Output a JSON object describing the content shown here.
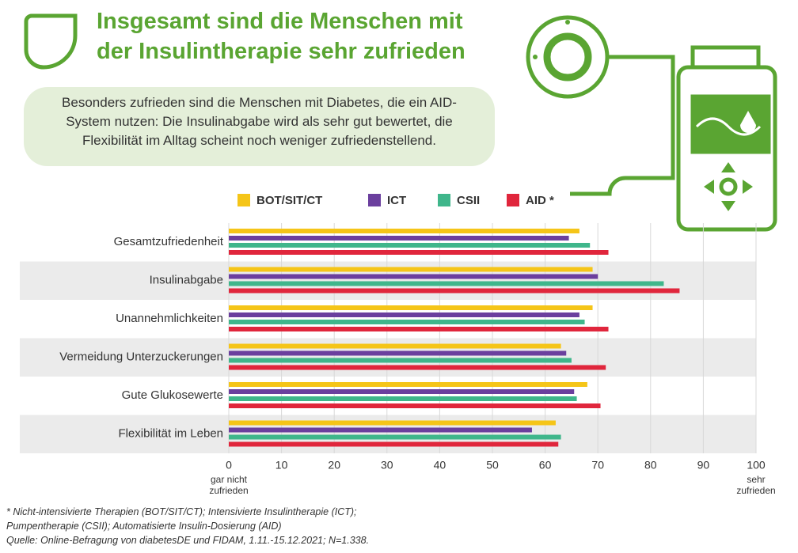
{
  "title": "Insgesamt sind die Menschen mit der Insulintherapie sehr zufrieden",
  "summary": "Besonders zufrieden sind die Menschen mit Diabetes, die ein AID-System nutzen: Die Insulinabgabe wird als sehr gut bewertet, die Flexibilität im Alltag scheint noch weniger zufriedenstellend.",
  "chart_data": {
    "type": "bar",
    "orientation": "horizontal",
    "categories": [
      "Gesamtzufriedenheit",
      "Insulinabgabe",
      "Unannehmlichkeiten",
      "Vermeidung Unterzuckerungen",
      "Gute Glukosewerte",
      "Flexibilität im Leben"
    ],
    "series": [
      {
        "name": "BOT/SIT/CT",
        "color": "#f5c518",
        "values": [
          66.5,
          69,
          69,
          63,
          68,
          62
        ]
      },
      {
        "name": "ICT",
        "color": "#6b3f9e",
        "values": [
          64.5,
          70,
          66.5,
          64,
          65.5,
          57.5
        ]
      },
      {
        "name": "CSII",
        "color": "#3fb68b",
        "values": [
          68.5,
          82.5,
          67.5,
          65,
          66,
          63
        ]
      },
      {
        "name": "AID *",
        "color": "#e0263c",
        "values": [
          72,
          85.5,
          72,
          71.5,
          70.5,
          62.5
        ]
      }
    ],
    "xlim": [
      0,
      100
    ],
    "xticks": [
      0,
      10,
      20,
      30,
      40,
      50,
      60,
      70,
      80,
      90,
      100
    ],
    "x_end_labels": {
      "low": [
        "gar nicht",
        "zufrieden"
      ],
      "high": [
        "sehr",
        "zufrieden"
      ]
    },
    "grid": true,
    "legend": "top"
  },
  "footnotes": [
    "* Nicht-intensivierte Therapien (BOT/SIT/CT); Intensivierte Insulintherapie (ICT);",
    "Pumpentherapie (CSII); Automatisierte Insulin-Dosierung (AID)",
    "Quelle: Online-Befragung von diabetesDE und FIDAM, 1.11.-15.12.2021; N=1.338."
  ]
}
